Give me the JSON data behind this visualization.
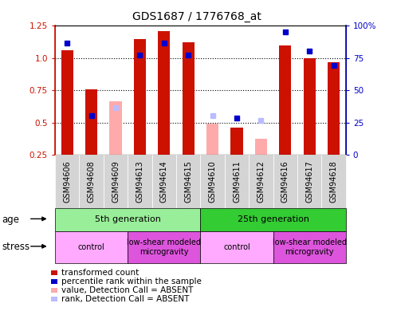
{
  "title": "GDS1687 / 1776768_at",
  "samples": [
    "GSM94606",
    "GSM94608",
    "GSM94609",
    "GSM94613",
    "GSM94614",
    "GSM94615",
    "GSM94610",
    "GSM94611",
    "GSM94612",
    "GSM94616",
    "GSM94617",
    "GSM94618"
  ],
  "transformed_count": [
    1.06,
    0.76,
    null,
    1.15,
    1.21,
    1.12,
    null,
    0.46,
    null,
    1.1,
    1.0,
    0.97
  ],
  "percentile_rank": [
    0.865,
    0.305,
    null,
    0.775,
    0.865,
    0.775,
    null,
    0.285,
    null,
    0.955,
    0.805,
    0.695
  ],
  "absent_value": [
    null,
    null,
    0.665,
    null,
    null,
    null,
    0.495,
    null,
    0.375,
    null,
    null,
    null
  ],
  "absent_rank": [
    null,
    null,
    0.365,
    null,
    null,
    null,
    0.305,
    null,
    0.265,
    null,
    null,
    null
  ],
  "ylim_left": [
    0.25,
    1.25
  ],
  "ylim_right": [
    0,
    100
  ],
  "yticks_left": [
    0.25,
    0.5,
    0.75,
    1.0,
    1.25
  ],
  "yticks_right": [
    0,
    25,
    50,
    75,
    100
  ],
  "age_row": [
    {
      "label": "5th generation",
      "start": 0,
      "end": 6,
      "color": "#99ee99"
    },
    {
      "label": "25th generation",
      "start": 6,
      "end": 12,
      "color": "#33cc33"
    }
  ],
  "stress_row": [
    {
      "label": "control",
      "start": 0,
      "end": 3,
      "color": "#ffaaff"
    },
    {
      "label": "low-shear modeled\nmicrogravity",
      "start": 3,
      "end": 6,
      "color": "#dd55dd"
    },
    {
      "label": "control",
      "start": 6,
      "end": 9,
      "color": "#ffaaff"
    },
    {
      "label": "low-shear modeled\nmicrogravity",
      "start": 9,
      "end": 12,
      "color": "#dd55dd"
    }
  ],
  "red_color": "#cc1100",
  "blue_color": "#0000cc",
  "pink_color": "#ffaaaa",
  "lavender_color": "#bbbbff",
  "tick_fontsize": 7.5,
  "sample_fontsize": 7,
  "annot_fontsize": 8,
  "legend_fontsize": 7.5
}
